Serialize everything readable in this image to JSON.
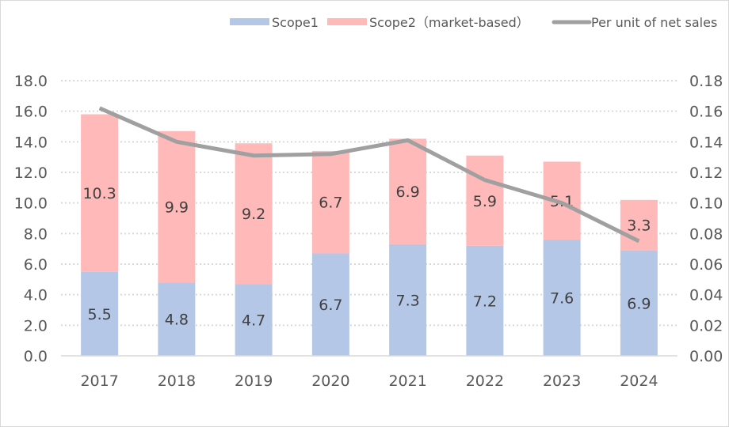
{
  "chart_data": {
    "type": "bar",
    "stacked": true,
    "categories": [
      "2017",
      "2018",
      "2019",
      "2020",
      "2021",
      "2022",
      "2023",
      "2024"
    ],
    "series": [
      {
        "name": "Scope1",
        "type": "bar",
        "axis": "left",
        "color": "#b4c7e7",
        "values": [
          5.5,
          4.8,
          4.7,
          6.7,
          7.3,
          7.2,
          7.6,
          6.9
        ]
      },
      {
        "name": "Scope2（market-based）",
        "type": "bar",
        "axis": "left",
        "color": "#ffb9b9",
        "values": [
          10.3,
          9.9,
          9.2,
          6.7,
          6.9,
          5.9,
          5.1,
          3.3
        ]
      },
      {
        "name": "Per unit of net sales",
        "type": "line",
        "axis": "right",
        "color": "#a0a0a0",
        "values": [
          0.162,
          0.14,
          0.131,
          0.132,
          0.141,
          0.115,
          0.1,
          0.075
        ]
      }
    ],
    "left_axis": {
      "range": [
        0,
        18
      ],
      "ticks": [
        "0.0",
        "2.0",
        "4.0",
        "6.0",
        "8.0",
        "10.0",
        "12.0",
        "14.0",
        "16.0",
        "18.0"
      ]
    },
    "right_axis": {
      "range": [
        0,
        0.18
      ],
      "ticks": [
        "0.00",
        "0.02",
        "0.04",
        "0.06",
        "0.08",
        "0.10",
        "0.12",
        "0.14",
        "0.16",
        "0.18"
      ]
    },
    "grid": true,
    "legend_placement": "top-right"
  }
}
